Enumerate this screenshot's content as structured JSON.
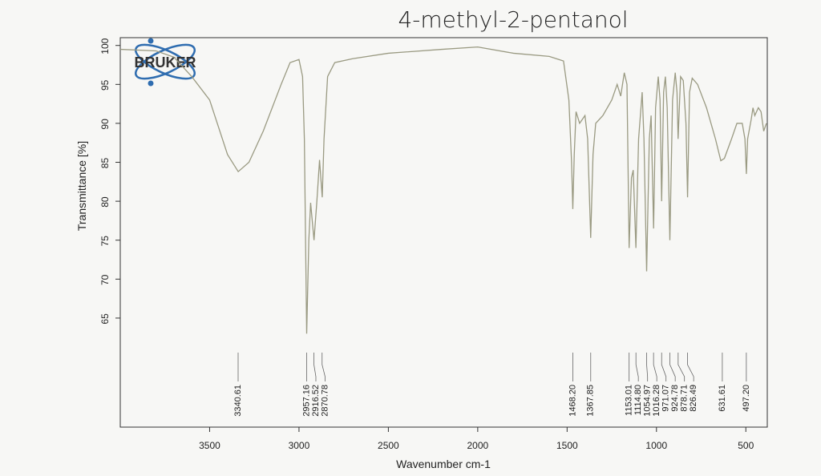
{
  "chart_data": {
    "type": "line",
    "title": "4-methyl-2-pentanol",
    "logo": "BRUKER",
    "x_label": "Wavenumber cm-1",
    "y_label": "Transmittance [%]",
    "xlim": [
      4000,
      380
    ],
    "ylim": [
      51,
      101
    ],
    "xticks": [
      3500,
      3000,
      2500,
      2000,
      1500,
      1000,
      500
    ],
    "yticks": [
      65,
      70,
      75,
      80,
      85,
      90,
      95,
      100
    ],
    "color": "#9a9a82",
    "x": [
      4000,
      3800,
      3700,
      3600,
      3500,
      3450,
      3400,
      3340,
      3280,
      3200,
      3100,
      3050,
      3000,
      2980,
      2970,
      2957,
      2945,
      2935,
      2916,
      2900,
      2885,
      2870,
      2860,
      2840,
      2800,
      2700,
      2500,
      2200,
      2000,
      1800,
      1600,
      1520,
      1490,
      1475,
      1468,
      1460,
      1450,
      1430,
      1400,
      1385,
      1368,
      1355,
      1340,
      1300,
      1250,
      1220,
      1200,
      1180,
      1165,
      1153,
      1140,
      1130,
      1115,
      1100,
      1080,
      1070,
      1055,
      1040,
      1030,
      1016,
      1005,
      990,
      980,
      971,
      960,
      950,
      940,
      925,
      910,
      895,
      885,
      879,
      865,
      850,
      835,
      826,
      815,
      800,
      770,
      720,
      670,
      640,
      620,
      580,
      550,
      520,
      505,
      497,
      490,
      470,
      460,
      450,
      440,
      430,
      415,
      400,
      385
    ],
    "values": [
      99.5,
      99.3,
      98.5,
      96,
      93,
      89.5,
      86,
      83.8,
      85,
      89,
      95,
      97.8,
      98.2,
      96,
      88,
      63,
      75,
      79.8,
      75,
      80,
      85.3,
      80.5,
      88,
      96,
      97.8,
      98.3,
      99,
      99.5,
      99.8,
      99,
      98.6,
      98,
      93,
      85,
      79,
      86,
      91.5,
      90,
      91,
      88,
      75.3,
      86,
      90,
      91,
      93,
      95,
      93.5,
      96.5,
      95,
      74,
      83,
      84,
      74,
      88,
      94,
      88,
      71,
      88,
      91,
      76.5,
      92,
      96,
      93,
      80,
      94,
      96,
      92,
      75,
      93,
      96.5,
      94,
      88,
      96,
      95.5,
      90,
      80.5,
      94,
      95.8,
      95,
      92,
      88,
      85.2,
      85.5,
      88,
      90,
      90,
      88,
      83.5,
      88,
      90.5,
      92,
      91,
      91.5,
      92,
      91.5,
      89,
      90
    ],
    "peaks": [
      3340.61,
      2957.16,
      2916.52,
      2870.78,
      {
        "value": 1468.2,
        "label": "1468.20"
      },
      1367.85,
      1153.01,
      {
        "value": 1114.8,
        "label": "1114.80"
      },
      1054.97,
      1016.28,
      971.07,
      924.78,
      878.71,
      826.49,
      631.61,
      {
        "value": 497.2,
        "label": "497.20"
      }
    ]
  }
}
